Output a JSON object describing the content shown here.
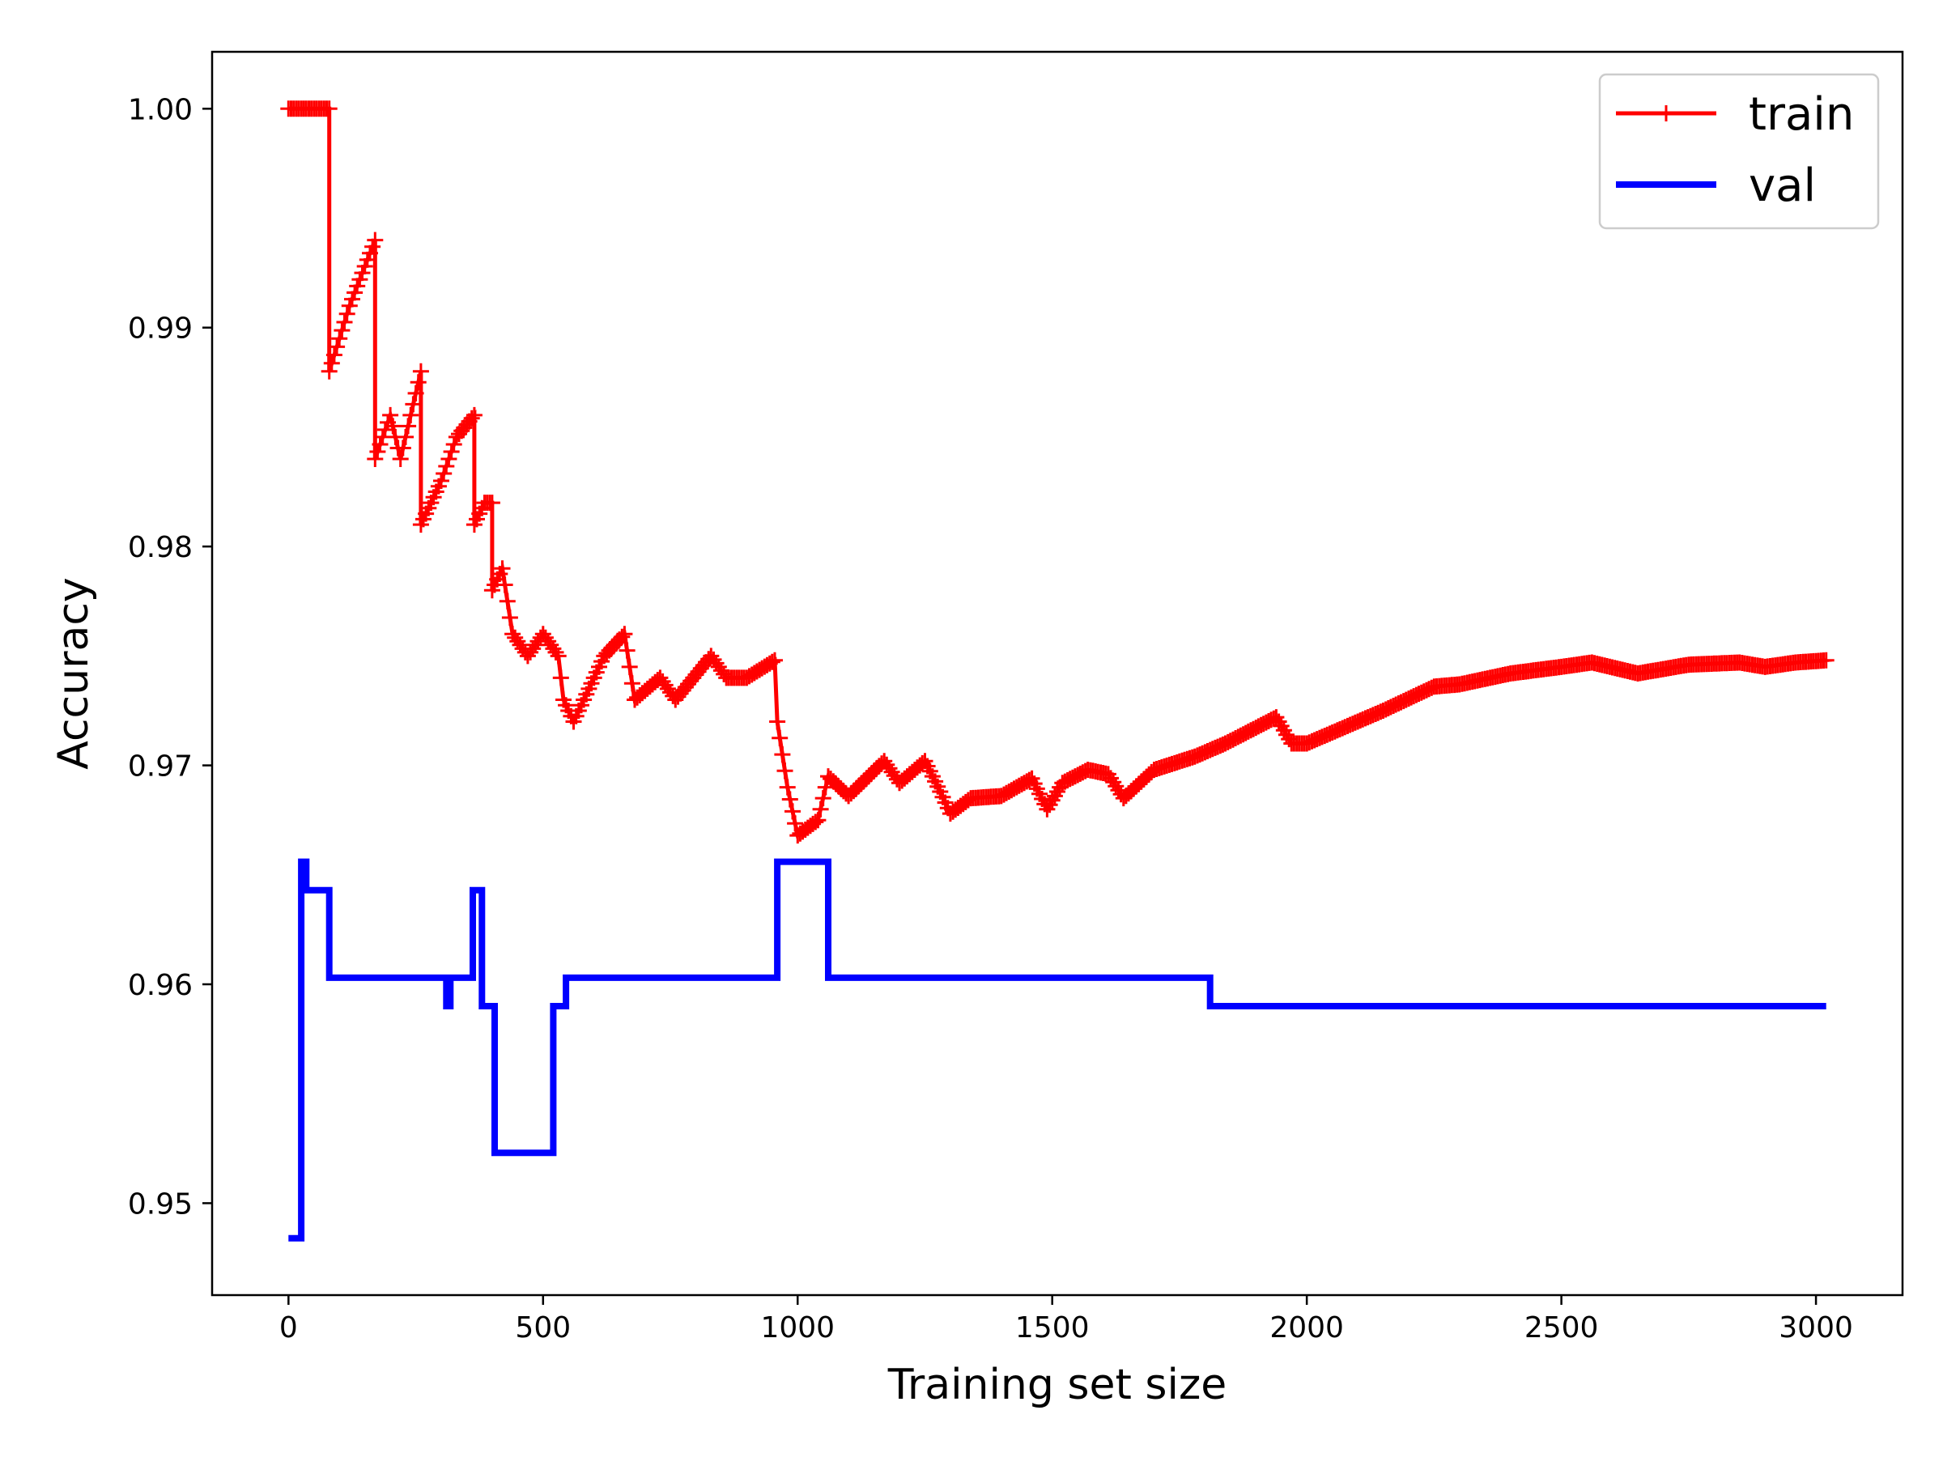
{
  "chart_data": {
    "type": "line",
    "title": "",
    "xlabel": "Training set size",
    "ylabel": "Accuracy",
    "xlim": [
      -150,
      3170
    ],
    "ylim": [
      0.9458,
      1.0026
    ],
    "xticks": [
      0,
      500,
      1000,
      1500,
      2000,
      2500,
      3000
    ],
    "xtick_labels": [
      "0",
      "500",
      "1000",
      "1500",
      "2000",
      "2500",
      "3000"
    ],
    "yticks": [
      0.95,
      0.96,
      0.97,
      0.98,
      0.99,
      1.0
    ],
    "ytick_labels": [
      "0.95",
      "0.96",
      "0.97",
      "0.98",
      "0.99",
      "1.00"
    ],
    "grid": false,
    "legend_position": "top-right",
    "series": [
      {
        "name": "train",
        "color": "#ff0000",
        "marker": "+",
        "points": [
          [
            0,
            1.0
          ],
          [
            80,
            1.0
          ],
          [
            80,
            0.988
          ],
          [
            120,
            0.991
          ],
          [
            170,
            0.994
          ],
          [
            170,
            0.984
          ],
          [
            200,
            0.986
          ],
          [
            220,
            0.984
          ],
          [
            260,
            0.988
          ],
          [
            260,
            0.981
          ],
          [
            300,
            0.983
          ],
          [
            330,
            0.985
          ],
          [
            365,
            0.986
          ],
          [
            365,
            0.981
          ],
          [
            385,
            0.982
          ],
          [
            400,
            0.982
          ],
          [
            400,
            0.978
          ],
          [
            420,
            0.979
          ],
          [
            440,
            0.976
          ],
          [
            470,
            0.975
          ],
          [
            500,
            0.976
          ],
          [
            530,
            0.975
          ],
          [
            540,
            0.973
          ],
          [
            560,
            0.972
          ],
          [
            620,
            0.975
          ],
          [
            660,
            0.976
          ],
          [
            680,
            0.973
          ],
          [
            730,
            0.974
          ],
          [
            760,
            0.973
          ],
          [
            830,
            0.975
          ],
          [
            860,
            0.974
          ],
          [
            900,
            0.974
          ],
          [
            955,
            0.9748
          ],
          [
            960,
            0.972
          ],
          [
            980,
            0.969
          ],
          [
            1000,
            0.9668
          ],
          [
            1040,
            0.9675
          ],
          [
            1060,
            0.9695
          ],
          [
            1100,
            0.9686
          ],
          [
            1170,
            0.9702
          ],
          [
            1200,
            0.9692
          ],
          [
            1250,
            0.9702
          ],
          [
            1280,
            0.9688
          ],
          [
            1300,
            0.9678
          ],
          [
            1340,
            0.9685
          ],
          [
            1400,
            0.9686
          ],
          [
            1460,
            0.9694
          ],
          [
            1490,
            0.968
          ],
          [
            1520,
            0.9692
          ],
          [
            1570,
            0.9698
          ],
          [
            1610,
            0.9696
          ],
          [
            1640,
            0.9685
          ],
          [
            1700,
            0.9698
          ],
          [
            1780,
            0.9704
          ],
          [
            1840,
            0.971
          ],
          [
            1890,
            0.9716
          ],
          [
            1940,
            0.9722
          ],
          [
            1970,
            0.971
          ],
          [
            2000,
            0.971
          ],
          [
            2060,
            0.9716
          ],
          [
            2150,
            0.9725
          ],
          [
            2250,
            0.9736
          ],
          [
            2300,
            0.9737
          ],
          [
            2400,
            0.9742
          ],
          [
            2500,
            0.9745
          ],
          [
            2560,
            0.9747
          ],
          [
            2650,
            0.9742
          ],
          [
            2750,
            0.9746
          ],
          [
            2850,
            0.9747
          ],
          [
            2900,
            0.9745
          ],
          [
            2960,
            0.9747
          ],
          [
            3020,
            0.9748
          ]
        ]
      },
      {
        "name": "val",
        "color": "#0000ff",
        "marker": "",
        "points": [
          [
            0,
            0.9484
          ],
          [
            25,
            0.9484
          ],
          [
            25,
            0.9656
          ],
          [
            35,
            0.9656
          ],
          [
            35,
            0.9643
          ],
          [
            80,
            0.9643
          ],
          [
            80,
            0.9603
          ],
          [
            310,
            0.9603
          ],
          [
            310,
            0.959
          ],
          [
            318,
            0.959
          ],
          [
            318,
            0.9603
          ],
          [
            362,
            0.9603
          ],
          [
            362,
            0.9643
          ],
          [
            380,
            0.9643
          ],
          [
            380,
            0.959
          ],
          [
            405,
            0.959
          ],
          [
            405,
            0.9523
          ],
          [
            520,
            0.9523
          ],
          [
            520,
            0.959
          ],
          [
            545,
            0.959
          ],
          [
            545,
            0.9603
          ],
          [
            960,
            0.9603
          ],
          [
            960,
            0.9656
          ],
          [
            1060,
            0.9656
          ],
          [
            1060,
            0.9603
          ],
          [
            1810,
            0.9603
          ],
          [
            1810,
            0.959
          ],
          [
            3020,
            0.959
          ]
        ]
      }
    ]
  }
}
